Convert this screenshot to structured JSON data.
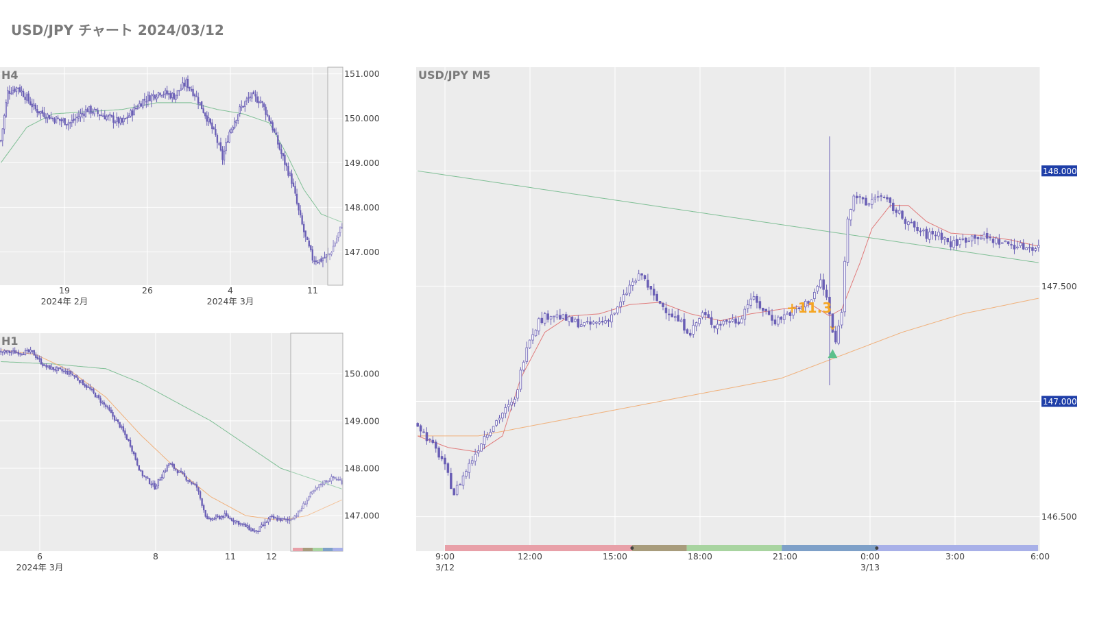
{
  "title": "USD/JPY チャート 2024/03/12",
  "colors": {
    "candle": "#6a5fb5",
    "ma_fast": "#e07a7a",
    "ma_mid": "#7fbf95",
    "ma_slow": "#f0b07a",
    "plot_bg": "#ececec",
    "price_badge": "#1f3fa8",
    "pips_text": "#f5a623",
    "entry_marker": "#5cc08a"
  },
  "chart_data": [
    {
      "id": "h4",
      "type": "candlestick",
      "label": "H4",
      "y_ticks": [
        "151.000",
        "150.000",
        "149.000",
        "148.000",
        "147.000"
      ],
      "y_tick_values": [
        151.0,
        150.0,
        149.0,
        148.0,
        147.0
      ],
      "ylim": [
        146.25,
        151.15
      ],
      "x_ticks": [
        "19",
        "26",
        "4",
        "11"
      ],
      "x_sublabels": [
        "2024年 2月",
        "2024年 3月"
      ],
      "series_path": [
        [
          0,
          149.5
        ],
        [
          4,
          150.6
        ],
        [
          10,
          150.7
        ],
        [
          20,
          150.2
        ],
        [
          30,
          150.0
        ],
        [
          40,
          149.9
        ],
        [
          50,
          150.2
        ],
        [
          60,
          150.05
        ],
        [
          70,
          149.9
        ],
        [
          82,
          150.4
        ],
        [
          92,
          150.6
        ],
        [
          100,
          150.5
        ],
        [
          107,
          150.8
        ],
        [
          112,
          150.55
        ],
        [
          118,
          150.1
        ],
        [
          124,
          149.6
        ],
        [
          128,
          149.1
        ],
        [
          132,
          149.7
        ],
        [
          138,
          150.2
        ],
        [
          144,
          150.5
        ],
        [
          150,
          150.4
        ],
        [
          156,
          149.9
        ],
        [
          162,
          149.2
        ],
        [
          168,
          148.6
        ],
        [
          172,
          147.9
        ],
        [
          176,
          147.3
        ],
        [
          180,
          146.85
        ],
        [
          184,
          146.8
        ],
        [
          190,
          146.95
        ],
        [
          194,
          147.3
        ],
        [
          198,
          147.7
        ]
      ],
      "ma_path": [
        [
          0,
          149.0
        ],
        [
          15,
          149.8
        ],
        [
          30,
          150.1
        ],
        [
          50,
          150.15
        ],
        [
          70,
          150.2
        ],
        [
          90,
          150.35
        ],
        [
          110,
          150.35
        ],
        [
          125,
          150.2
        ],
        [
          140,
          150.1
        ],
        [
          155,
          149.9
        ],
        [
          165,
          149.2
        ],
        [
          175,
          148.4
        ],
        [
          185,
          147.85
        ],
        [
          198,
          147.65
        ]
      ],
      "n_candles": 198,
      "selection_from": 190
    },
    {
      "id": "h1",
      "type": "candlestick",
      "label": "H1",
      "y_ticks": [
        "150.000",
        "149.000",
        "148.000",
        "147.000"
      ],
      "y_tick_values": [
        150.0,
        149.0,
        148.0,
        147.0
      ],
      "ylim": [
        146.25,
        150.85
      ],
      "x_ticks": [
        "6",
        "8",
        "11",
        "12"
      ],
      "x_sublabels": [
        "2024年 3月"
      ],
      "series_path": [
        [
          0,
          150.45
        ],
        [
          18,
          150.45
        ],
        [
          25,
          150.15
        ],
        [
          40,
          150.0
        ],
        [
          50,
          149.7
        ],
        [
          60,
          149.3
        ],
        [
          68,
          148.9
        ],
        [
          74,
          148.5
        ],
        [
          80,
          147.9
        ],
        [
          88,
          147.6
        ],
        [
          96,
          148.1
        ],
        [
          104,
          147.85
        ],
        [
          112,
          147.6
        ],
        [
          118,
          146.9
        ],
        [
          128,
          147.0
        ],
        [
          136,
          146.85
        ],
        [
          146,
          146.65
        ],
        [
          154,
          146.95
        ],
        [
          164,
          146.9
        ],
        [
          170,
          147.05
        ],
        [
          176,
          147.4
        ],
        [
          184,
          147.7
        ],
        [
          190,
          147.8
        ],
        [
          196,
          147.7
        ]
      ],
      "ma_fast_path": [
        [
          0,
          150.5
        ],
        [
          20,
          150.4
        ],
        [
          40,
          150.05
        ],
        [
          60,
          149.5
        ],
        [
          80,
          148.7
        ],
        [
          100,
          148.0
        ],
        [
          120,
          147.4
        ],
        [
          140,
          147.0
        ],
        [
          160,
          146.9
        ],
        [
          175,
          147.0
        ],
        [
          196,
          147.35
        ]
      ],
      "ma_slow_path": [
        [
          0,
          150.25
        ],
        [
          30,
          150.2
        ],
        [
          60,
          150.1
        ],
        [
          80,
          149.8
        ],
        [
          100,
          149.4
        ],
        [
          120,
          149.0
        ],
        [
          140,
          148.5
        ],
        [
          160,
          148.0
        ],
        [
          180,
          147.75
        ],
        [
          196,
          147.55
        ]
      ],
      "n_candles": 196,
      "selection_from": 166,
      "session_colors": [
        "#e8a0a8",
        "#a89c7c",
        "#a8d4a0",
        "#7ea0c8",
        "#a8b0e8"
      ]
    },
    {
      "id": "m5",
      "type": "candlestick",
      "label": "USD/JPY M5",
      "y_ticks": [
        "148.000",
        "147.500",
        "147.000",
        "146.500"
      ],
      "y_tick_values": [
        148.0,
        147.5,
        147.0,
        146.5
      ],
      "ylim": [
        146.35,
        148.45
      ],
      "highlighted_prices": [
        "148.000",
        "147.000"
      ],
      "x_ticks": [
        "9:00",
        "12:00",
        "15:00",
        "18:00",
        "21:00",
        "0:00",
        "3:00",
        "6:00"
      ],
      "x_sublabels": [
        "3/12",
        "3/13"
      ],
      "series_path": [
        [
          0,
          146.9
        ],
        [
          8,
          146.75
        ],
        [
          12,
          146.6
        ],
        [
          18,
          146.75
        ],
        [
          22,
          146.85
        ],
        [
          28,
          146.95
        ],
        [
          32,
          147.0
        ],
        [
          36,
          147.25
        ],
        [
          40,
          147.35
        ],
        [
          44,
          147.38
        ],
        [
          50,
          147.35
        ],
        [
          56,
          147.33
        ],
        [
          62,
          147.35
        ],
        [
          66,
          147.4
        ],
        [
          70,
          147.5
        ],
        [
          74,
          147.55
        ],
        [
          78,
          147.45
        ],
        [
          82,
          147.4
        ],
        [
          86,
          147.35
        ],
        [
          90,
          147.3
        ],
        [
          94,
          147.38
        ],
        [
          98,
          147.33
        ],
        [
          102,
          147.35
        ],
        [
          106,
          147.35
        ],
        [
          110,
          147.45
        ],
        [
          114,
          147.4
        ],
        [
          118,
          147.35
        ],
        [
          122,
          147.38
        ],
        [
          126,
          147.4
        ],
        [
          130,
          147.45
        ],
        [
          133,
          147.52
        ],
        [
          135,
          147.45
        ],
        [
          137,
          147.3
        ],
        [
          138,
          147.25
        ],
        [
          140,
          147.4
        ],
        [
          142,
          147.8
        ],
        [
          144,
          147.9
        ],
        [
          148,
          147.85
        ],
        [
          152,
          147.9
        ],
        [
          156,
          147.85
        ],
        [
          160,
          147.8
        ],
        [
          164,
          147.75
        ],
        [
          168,
          147.72
        ],
        [
          172,
          147.73
        ],
        [
          176,
          147.68
        ],
        [
          180,
          147.7
        ],
        [
          184,
          147.72
        ],
        [
          190,
          147.7
        ],
        [
          196,
          147.68
        ],
        [
          200,
          147.67
        ],
        [
          206,
          147.67
        ]
      ],
      "ma_fast_path": [
        [
          0,
          146.85
        ],
        [
          10,
          146.8
        ],
        [
          20,
          146.78
        ],
        [
          28,
          146.85
        ],
        [
          34,
          147.1
        ],
        [
          42,
          147.3
        ],
        [
          50,
          147.37
        ],
        [
          60,
          147.38
        ],
        [
          70,
          147.42
        ],
        [
          80,
          147.43
        ],
        [
          90,
          147.38
        ],
        [
          100,
          147.35
        ],
        [
          110,
          147.38
        ],
        [
          120,
          147.4
        ],
        [
          130,
          147.42
        ],
        [
          136,
          147.37
        ],
        [
          140,
          147.4
        ],
        [
          146,
          147.6
        ],
        [
          150,
          147.75
        ],
        [
          156,
          147.85
        ],
        [
          162,
          147.85
        ],
        [
          168,
          147.78
        ],
        [
          176,
          147.73
        ],
        [
          186,
          147.72
        ],
        [
          196,
          147.7
        ],
        [
          206,
          147.67
        ]
      ],
      "ma_mid_path": [
        [
          0,
          148.0
        ],
        [
          206,
          147.6
        ]
      ],
      "ma_slow_path": [
        [
          0,
          146.85
        ],
        [
          20,
          146.85
        ],
        [
          40,
          146.9
        ],
        [
          60,
          146.95
        ],
        [
          80,
          147.0
        ],
        [
          100,
          147.05
        ],
        [
          120,
          147.1
        ],
        [
          140,
          147.2
        ],
        [
          160,
          147.3
        ],
        [
          180,
          147.38
        ],
        [
          206,
          147.45
        ]
      ],
      "n_candles": 206,
      "spike": {
        "index": 136,
        "high": 148.15,
        "low": 147.07
      },
      "pips_label": "+11.3",
      "entry_index": 137,
      "entry_price": 147.2,
      "session_colors": [
        "#e8a0a8",
        "#a89c7c",
        "#a8d4a0",
        "#7ea0c8",
        "#a8b0e8"
      ],
      "session_bounds": [
        0,
        65,
        84,
        117,
        150,
        206
      ]
    }
  ]
}
